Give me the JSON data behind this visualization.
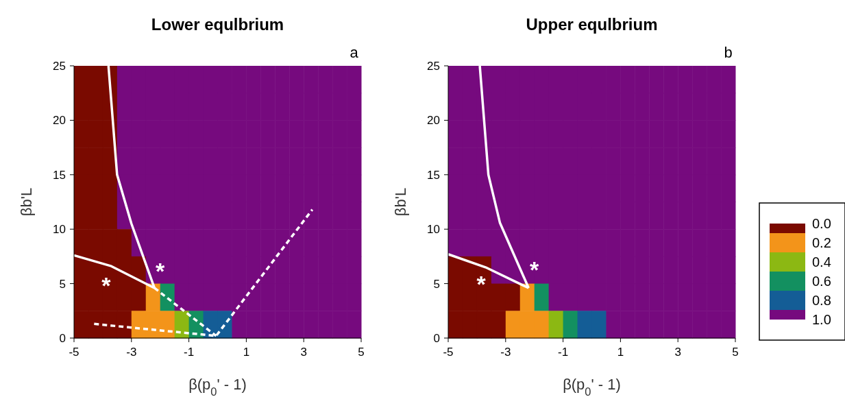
{
  "chart_data": [
    {
      "type": "scatter",
      "title": "Lower equlbrium",
      "xlabel": "β(p$_{0}$' - 1)",
      "ylabel": "βb'L",
      "annotations": [
        "a",
        "*",
        "*"
      ],
      "xlim": [
        -5,
        5
      ],
      "xticks": [
        -5,
        -3,
        -1,
        1,
        3,
        5
      ],
      "ylim": [
        0,
        25
      ],
      "yticks": [
        0,
        5,
        10,
        15,
        20,
        25
      ],
      "series": [
        {
          "marker": "square",
          "colors": [
            "#7a0a00",
            "#7a0a00",
            "#7a0a00",
            "#760a7e",
            "#760a7e",
            "#760a7e",
            "#760a7e",
            "#760a7e",
            "#760a7e",
            "#760a7e",
            "#760a7e",
            "#760a7e",
            "#760a7e",
            "#760a7e",
            "#760a7e",
            "#760a7e",
            "#760a7e",
            "#760a7e",
            "#760a7e",
            "#760a7e",
            "#7a0a00",
            "#7a0a00",
            "#7a0a00",
            "#760a7e",
            "#760a7e",
            "#760a7e",
            "#760a7e",
            "#760a7e",
            "#760a7e",
            "#760a7e",
            "#760a7e",
            "#760a7e",
            "#760a7e",
            "#760a7e",
            "#760a7e",
            "#760a7e",
            "#760a7e",
            "#760a7e",
            "#760a7e",
            "#760a7e",
            "#7a0a00",
            "#7a0a00",
            "#7a0a00",
            "#760a7e",
            "#760a7e",
            "#760a7e",
            "#760a7e",
            "#760a7e",
            "#760a7e",
            "#760a7e",
            "#760a7e",
            "#760a7e",
            "#760a7e",
            "#760a7e",
            "#760a7e",
            "#760a7e",
            "#760a7e",
            "#760a7e",
            "#760a7e",
            "#760a7e",
            "#7a0a00",
            "#7a0a00",
            "#7a0a00",
            "#760a7e",
            "#760a7e",
            "#760a7e",
            "#760a7e",
            "#760a7e",
            "#760a7e",
            "#760a7e",
            "#760a7e",
            "#760a7e",
            "#760a7e",
            "#760a7e",
            "#760a7e",
            "#760a7e",
            "#760a7e",
            "#760a7e",
            "#760a7e",
            "#760a7e",
            "#7a0a00",
            "#7a0a00",
            "#7a0a00",
            "#760a7e",
            "#760a7e",
            "#760a7e",
            "#760a7e",
            "#760a7e",
            "#760a7e",
            "#760a7e",
            "#760a7e",
            "#760a7e",
            "#760a7e",
            "#760a7e",
            "#760a7e",
            "#760a7e",
            "#760a7e",
            "#760a7e",
            "#760a7e",
            "#760a7e",
            "#7a0a00",
            "#7a0a00",
            "#7a0a00",
            "#760a7e",
            "#760a7e",
            "#760a7e",
            "#760a7e",
            "#760a7e",
            "#760a7e",
            "#760a7e",
            "#760a7e",
            "#760a7e",
            "#760a7e",
            "#760a7e",
            "#760a7e",
            "#760a7e",
            "#760a7e",
            "#760a7e",
            "#760a7e",
            "#760a7e",
            "#7a0a00",
            "#7a0a00",
            "#7a0a00",
            "#7a0a00",
            "#760a7e",
            "#760a7e",
            "#760a7e",
            "#760a7e",
            "#760a7e",
            "#760a7e",
            "#760a7e",
            "#760a7e",
            "#760a7e",
            "#760a7e",
            "#760a7e",
            "#760a7e",
            "#760a7e",
            "#760a7e",
            "#760a7e",
            "#760a7e",
            "#7a0a00",
            "#7a0a00",
            "#7a0a00",
            "#7a0a00",
            "#7a0a00",
            "#760a7e",
            "#760a7e",
            "#760a7e",
            "#760a7e",
            "#760a7e",
            "#760a7e",
            "#760a7e",
            "#760a7e",
            "#760a7e",
            "#760a7e",
            "#760a7e",
            "#760a7e",
            "#760a7e",
            "#760a7e",
            "#760a7e",
            "#7a0a00",
            "#7a0a00",
            "#7a0a00",
            "#7a0a00",
            "#7a0a00",
            "#f3941a",
            "#139060",
            "#760a7e",
            "#760a7e",
            "#760a7e",
            "#760a7e",
            "#760a7e",
            "#760a7e",
            "#760a7e",
            "#760a7e",
            "#760a7e",
            "#760a7e",
            "#760a7e",
            "#760a7e",
            "#760a7e",
            "#7a0a00",
            "#7a0a00",
            "#7a0a00",
            "#7a0a00",
            "#f3941a",
            "#f3941a",
            "#f3941a",
            "#8cb813",
            "#139060",
            "#145d96",
            "#145d96",
            "#760a7e",
            "#760a7e",
            "#760a7e",
            "#760a7e",
            "#760a7e",
            "#760a7e",
            "#760a7e",
            "#760a7e",
            "#760a7e"
          ],
          "x": [
            -4.75,
            -4.25,
            -3.75,
            -3.25,
            -2.75,
            -2.25,
            -1.75,
            -1.25,
            -0.75,
            -0.25,
            0.25,
            0.75,
            1.25,
            1.75,
            2.25,
            2.75,
            3.25,
            3.75,
            4.25,
            4.75,
            -4.75,
            -4.25,
            -3.75,
            -3.25,
            -2.75,
            -2.25,
            -1.75,
            -1.25,
            -0.75,
            -0.25,
            0.25,
            0.75,
            1.25,
            1.75,
            2.25,
            2.75,
            3.25,
            3.75,
            4.25,
            4.75,
            -4.75,
            -4.25,
            -3.75,
            -3.25,
            -2.75,
            -2.25,
            -1.75,
            -1.25,
            -0.75,
            -0.25,
            0.25,
            0.75,
            1.25,
            1.75,
            2.25,
            2.75,
            3.25,
            3.75,
            4.25,
            4.75,
            -4.75,
            -4.25,
            -3.75,
            -3.25,
            -2.75,
            -2.25,
            -1.75,
            -1.25,
            -0.75,
            -0.25,
            0.25,
            0.75,
            1.25,
            1.75,
            2.25,
            2.75,
            3.25,
            3.75,
            4.25,
            4.75,
            -4.75,
            -4.25,
            -3.75,
            -3.25,
            -2.75,
            -2.25,
            -1.75,
            -1.25,
            -0.75,
            -0.25,
            0.25,
            0.75,
            1.25,
            1.75,
            2.25,
            2.75,
            3.25,
            3.75,
            4.25,
            4.75,
            -4.75,
            -4.25,
            -3.75,
            -3.25,
            -2.75,
            -2.25,
            -1.75,
            -1.25,
            -0.75,
            -0.25,
            0.25,
            0.75,
            1.25,
            1.75,
            2.25,
            2.75,
            3.25,
            3.75,
            4.25,
            4.75,
            -4.75,
            -4.25,
            -3.75,
            -3.25,
            -2.75,
            -2.25,
            -1.75,
            -1.25,
            -0.75,
            -0.25,
            0.25,
            0.75,
            1.25,
            1.75,
            2.25,
            2.75,
            3.25,
            3.75,
            4.25,
            4.75,
            -4.75,
            -4.25,
            -3.75,
            -3.25,
            -2.75,
            -2.25,
            -1.75,
            -1.25,
            -0.75,
            -0.25,
            0.25,
            0.75,
            1.25,
            1.75,
            2.25,
            2.75,
            3.25,
            3.75,
            4.25,
            4.75,
            -4.75,
            -4.25,
            -3.75,
            -3.25,
            -2.75,
            -2.25,
            -1.75,
            -1.25,
            -0.75,
            -0.25,
            0.25,
            0.75,
            1.25,
            1.75,
            2.25,
            2.75,
            3.25,
            3.75,
            4.25,
            4.75,
            -4.75,
            -4.25,
            -3.75,
            -3.25,
            -2.75,
            -2.25,
            -1.75,
            -1.25,
            -0.75,
            -0.25,
            0.25,
            0.75,
            1.25,
            1.75,
            2.25,
            2.75,
            3.25,
            3.75,
            4.25,
            4.75
          ],
          "values": [
            23.75,
            23.75,
            23.75,
            23.75,
            23.75,
            23.75,
            23.75,
            23.75,
            23.75,
            23.75,
            23.75,
            23.75,
            23.75,
            23.75,
            23.75,
            23.75,
            23.75,
            23.75,
            23.75,
            23.75,
            21.25,
            21.25,
            21.25,
            21.25,
            21.25,
            21.25,
            21.25,
            21.25,
            21.25,
            21.25,
            21.25,
            21.25,
            21.25,
            21.25,
            21.25,
            21.25,
            21.25,
            21.25,
            21.25,
            21.25,
            18.75,
            18.75,
            18.75,
            18.75,
            18.75,
            18.75,
            18.75,
            18.75,
            18.75,
            18.75,
            18.75,
            18.75,
            18.75,
            18.75,
            18.75,
            18.75,
            18.75,
            18.75,
            18.75,
            18.75,
            16.25,
            16.25,
            16.25,
            16.25,
            16.25,
            16.25,
            16.25,
            16.25,
            16.25,
            16.25,
            16.25,
            16.25,
            16.25,
            16.25,
            16.25,
            16.25,
            16.25,
            16.25,
            16.25,
            16.25,
            13.75,
            13.75,
            13.75,
            13.75,
            13.75,
            13.75,
            13.75,
            13.75,
            13.75,
            13.75,
            13.75,
            13.75,
            13.75,
            13.75,
            13.75,
            13.75,
            13.75,
            13.75,
            13.75,
            13.75,
            11.25,
            11.25,
            11.25,
            11.25,
            11.25,
            11.25,
            11.25,
            11.25,
            11.25,
            11.25,
            11.25,
            11.25,
            11.25,
            11.25,
            11.25,
            11.25,
            11.25,
            11.25,
            11.25,
            11.25,
            8.75,
            8.75,
            8.75,
            8.75,
            8.75,
            8.75,
            8.75,
            8.75,
            8.75,
            8.75,
            8.75,
            8.75,
            8.75,
            8.75,
            8.75,
            8.75,
            8.75,
            8.75,
            8.75,
            8.75,
            6.25,
            6.25,
            6.25,
            6.25,
            6.25,
            6.25,
            6.25,
            6.25,
            6.25,
            6.25,
            6.25,
            6.25,
            6.25,
            6.25,
            6.25,
            6.25,
            6.25,
            6.25,
            6.25,
            6.25,
            3.75,
            3.75,
            3.75,
            3.75,
            3.75,
            3.75,
            3.75,
            3.75,
            3.75,
            3.75,
            3.75,
            3.75,
            3.75,
            3.75,
            3.75,
            3.75,
            3.75,
            3.75,
            3.75,
            3.75,
            1.25,
            1.25,
            1.25,
            1.25,
            1.25,
            1.25,
            1.25,
            1.25,
            1.25,
            1.25,
            1.25,
            1.25,
            1.25,
            1.25,
            1.25,
            1.25,
            1.25,
            1.25,
            1.25,
            1.25
          ]
        },
        {
          "type": "line",
          "color": "#ffffff",
          "line_style": "solid",
          "x": [
            -3.8,
            -3.5,
            -3,
            -2.2
          ],
          "values": [
            25,
            15,
            10.5,
            4.6
          ]
        },
        {
          "type": "line",
          "color": "#ffffff",
          "line_style": "solid",
          "x": [
            -5,
            -3.7,
            -2.2
          ],
          "values": [
            7.6,
            6.6,
            4.6
          ]
        },
        {
          "type": "line",
          "color": "#ffffff",
          "line_style": "dashed",
          "x": [
            -4.3,
            -0.05,
            3.3
          ],
          "values": [
            1.3,
            0.2,
            11.8
          ]
        },
        {
          "type": "line",
          "color": "#ffffff",
          "line_style": "dashed",
          "x": [
            -2.2,
            -0.05
          ],
          "values": [
            4.6,
            0.2
          ]
        }
      ]
    },
    {
      "type": "scatter",
      "title": "Upper equlbrium",
      "xlabel": "β(p$_{0}$' - 1)",
      "ylabel": "βb'L",
      "annotations": [
        "b",
        "*",
        "*"
      ],
      "xlim": [
        -5,
        5
      ],
      "xticks": [
        -5,
        -3,
        -1,
        1,
        3,
        5
      ],
      "ylim": [
        0,
        25
      ],
      "yticks": [
        0,
        5,
        10,
        15,
        20,
        25
      ],
      "clim": [
        0,
        1
      ],
      "cticks": [
        {
          "value": 0,
          "label": "0.0"
        },
        {
          "value": 0.2,
          "label": "0.2"
        },
        {
          "value": 0.4,
          "label": "0.4"
        },
        {
          "value": 0.6,
          "label": "0.6"
        },
        {
          "value": 0.8,
          "label": "0.8"
        },
        {
          "value": 1,
          "label": "1.0"
        }
      ],
      "colors": [
        "#7a0a00",
        "#f3941a",
        "#8cb813",
        "#139060",
        "#145d96",
        "#760a7e"
      ],
      "series": [
        {
          "marker": "square",
          "colors": [
            "#760a7e",
            "#760a7e",
            "#760a7e",
            "#760a7e",
            "#760a7e",
            "#760a7e",
            "#760a7e",
            "#760a7e",
            "#760a7e",
            "#760a7e",
            "#760a7e",
            "#760a7e",
            "#760a7e",
            "#760a7e",
            "#760a7e",
            "#760a7e",
            "#760a7e",
            "#760a7e",
            "#760a7e",
            "#760a7e",
            "#760a7e",
            "#760a7e",
            "#760a7e",
            "#760a7e",
            "#760a7e",
            "#760a7e",
            "#760a7e",
            "#760a7e",
            "#760a7e",
            "#760a7e",
            "#760a7e",
            "#760a7e",
            "#760a7e",
            "#760a7e",
            "#760a7e",
            "#760a7e",
            "#760a7e",
            "#760a7e",
            "#760a7e",
            "#760a7e",
            "#760a7e",
            "#760a7e",
            "#760a7e",
            "#760a7e",
            "#760a7e",
            "#760a7e",
            "#760a7e",
            "#760a7e",
            "#760a7e",
            "#760a7e",
            "#760a7e",
            "#760a7e",
            "#760a7e",
            "#760a7e",
            "#760a7e",
            "#760a7e",
            "#760a7e",
            "#760a7e",
            "#760a7e",
            "#760a7e",
            "#760a7e",
            "#760a7e",
            "#760a7e",
            "#760a7e",
            "#760a7e",
            "#760a7e",
            "#760a7e",
            "#760a7e",
            "#760a7e",
            "#760a7e",
            "#760a7e",
            "#760a7e",
            "#760a7e",
            "#760a7e",
            "#760a7e",
            "#760a7e",
            "#760a7e",
            "#760a7e",
            "#760a7e",
            "#760a7e",
            "#760a7e",
            "#760a7e",
            "#760a7e",
            "#760a7e",
            "#760a7e",
            "#760a7e",
            "#760a7e",
            "#760a7e",
            "#760a7e",
            "#760a7e",
            "#760a7e",
            "#760a7e",
            "#760a7e",
            "#760a7e",
            "#760a7e",
            "#760a7e",
            "#760a7e",
            "#760a7e",
            "#760a7e",
            "#760a7e",
            "#760a7e",
            "#760a7e",
            "#760a7e",
            "#760a7e",
            "#760a7e",
            "#760a7e",
            "#760a7e",
            "#760a7e",
            "#760a7e",
            "#760a7e",
            "#760a7e",
            "#760a7e",
            "#760a7e",
            "#760a7e",
            "#760a7e",
            "#760a7e",
            "#760a7e",
            "#760a7e",
            "#760a7e",
            "#760a7e",
            "#760a7e",
            "#760a7e",
            "#760a7e",
            "#760a7e",
            "#760a7e",
            "#760a7e",
            "#760a7e",
            "#760a7e",
            "#760a7e",
            "#760a7e",
            "#760a7e",
            "#760a7e",
            "#760a7e",
            "#760a7e",
            "#760a7e",
            "#760a7e",
            "#760a7e",
            "#760a7e",
            "#760a7e",
            "#760a7e",
            "#7a0a00",
            "#7a0a00",
            "#7a0a00",
            "#760a7e",
            "#760a7e",
            "#760a7e",
            "#760a7e",
            "#760a7e",
            "#760a7e",
            "#760a7e",
            "#760a7e",
            "#760a7e",
            "#760a7e",
            "#760a7e",
            "#760a7e",
            "#760a7e",
            "#760a7e",
            "#760a7e",
            "#760a7e",
            "#760a7e",
            "#7a0a00",
            "#7a0a00",
            "#7a0a00",
            "#7a0a00",
            "#7a0a00",
            "#f3941a",
            "#139060",
            "#760a7e",
            "#760a7e",
            "#760a7e",
            "#760a7e",
            "#760a7e",
            "#760a7e",
            "#760a7e",
            "#760a7e",
            "#760a7e",
            "#760a7e",
            "#760a7e",
            "#760a7e",
            "#760a7e",
            "#7a0a00",
            "#7a0a00",
            "#7a0a00",
            "#7a0a00",
            "#f3941a",
            "#f3941a",
            "#f3941a",
            "#8cb813",
            "#139060",
            "#145d96",
            "#145d96",
            "#760a7e",
            "#760a7e",
            "#760a7e",
            "#760a7e",
            "#760a7e",
            "#760a7e",
            "#760a7e",
            "#760a7e",
            "#760a7e"
          ],
          "x": [
            -4.75,
            -4.25,
            -3.75,
            -3.25,
            -2.75,
            -2.25,
            -1.75,
            -1.25,
            -0.75,
            -0.25,
            0.25,
            0.75,
            1.25,
            1.75,
            2.25,
            2.75,
            3.25,
            3.75,
            4.25,
            4.75,
            -4.75,
            -4.25,
            -3.75,
            -3.25,
            -2.75,
            -2.25,
            -1.75,
            -1.25,
            -0.75,
            -0.25,
            0.25,
            0.75,
            1.25,
            1.75,
            2.25,
            2.75,
            3.25,
            3.75,
            4.25,
            4.75,
            -4.75,
            -4.25,
            -3.75,
            -3.25,
            -2.75,
            -2.25,
            -1.75,
            -1.25,
            -0.75,
            -0.25,
            0.25,
            0.75,
            1.25,
            1.75,
            2.25,
            2.75,
            3.25,
            3.75,
            4.25,
            4.75,
            -4.75,
            -4.25,
            -3.75,
            -3.25,
            -2.75,
            -2.25,
            -1.75,
            -1.25,
            -0.75,
            -0.25,
            0.25,
            0.75,
            1.25,
            1.75,
            2.25,
            2.75,
            3.25,
            3.75,
            4.25,
            4.75,
            -4.75,
            -4.25,
            -3.75,
            -3.25,
            -2.75,
            -2.25,
            -1.75,
            -1.25,
            -0.75,
            -0.25,
            0.25,
            0.75,
            1.25,
            1.75,
            2.25,
            2.75,
            3.25,
            3.75,
            4.25,
            4.75,
            -4.75,
            -4.25,
            -3.75,
            -3.25,
            -2.75,
            -2.25,
            -1.75,
            -1.25,
            -0.75,
            -0.25,
            0.25,
            0.75,
            1.25,
            1.75,
            2.25,
            2.75,
            3.25,
            3.75,
            4.25,
            4.75,
            -4.75,
            -4.25,
            -3.75,
            -3.25,
            -2.75,
            -2.25,
            -1.75,
            -1.25,
            -0.75,
            -0.25,
            0.25,
            0.75,
            1.25,
            1.75,
            2.25,
            2.75,
            3.25,
            3.75,
            4.25,
            4.75,
            -4.75,
            -4.25,
            -3.75,
            -3.25,
            -2.75,
            -2.25,
            -1.75,
            -1.25,
            -0.75,
            -0.25,
            0.25,
            0.75,
            1.25,
            1.75,
            2.25,
            2.75,
            3.25,
            3.75,
            4.25,
            4.75,
            -4.75,
            -4.25,
            -3.75,
            -3.25,
            -2.75,
            -2.25,
            -1.75,
            -1.25,
            -0.75,
            -0.25,
            0.25,
            0.75,
            1.25,
            1.75,
            2.25,
            2.75,
            3.25,
            3.75,
            4.25,
            4.75,
            -4.75,
            -4.25,
            -3.75,
            -3.25,
            -2.75,
            -2.25,
            -1.75,
            -1.25,
            -0.75,
            -0.25,
            0.25,
            0.75,
            1.25,
            1.75,
            2.25,
            2.75,
            3.25,
            3.75,
            4.25,
            4.75
          ],
          "values": [
            23.75,
            23.75,
            23.75,
            23.75,
            23.75,
            23.75,
            23.75,
            23.75,
            23.75,
            23.75,
            23.75,
            23.75,
            23.75,
            23.75,
            23.75,
            23.75,
            23.75,
            23.75,
            23.75,
            23.75,
            21.25,
            21.25,
            21.25,
            21.25,
            21.25,
            21.25,
            21.25,
            21.25,
            21.25,
            21.25,
            21.25,
            21.25,
            21.25,
            21.25,
            21.25,
            21.25,
            21.25,
            21.25,
            21.25,
            21.25,
            18.75,
            18.75,
            18.75,
            18.75,
            18.75,
            18.75,
            18.75,
            18.75,
            18.75,
            18.75,
            18.75,
            18.75,
            18.75,
            18.75,
            18.75,
            18.75,
            18.75,
            18.75,
            18.75,
            18.75,
            16.25,
            16.25,
            16.25,
            16.25,
            16.25,
            16.25,
            16.25,
            16.25,
            16.25,
            16.25,
            16.25,
            16.25,
            16.25,
            16.25,
            16.25,
            16.25,
            16.25,
            16.25,
            16.25,
            16.25,
            13.75,
            13.75,
            13.75,
            13.75,
            13.75,
            13.75,
            13.75,
            13.75,
            13.75,
            13.75,
            13.75,
            13.75,
            13.75,
            13.75,
            13.75,
            13.75,
            13.75,
            13.75,
            13.75,
            13.75,
            11.25,
            11.25,
            11.25,
            11.25,
            11.25,
            11.25,
            11.25,
            11.25,
            11.25,
            11.25,
            11.25,
            11.25,
            11.25,
            11.25,
            11.25,
            11.25,
            11.25,
            11.25,
            11.25,
            11.25,
            8.75,
            8.75,
            8.75,
            8.75,
            8.75,
            8.75,
            8.75,
            8.75,
            8.75,
            8.75,
            8.75,
            8.75,
            8.75,
            8.75,
            8.75,
            8.75,
            8.75,
            8.75,
            8.75,
            8.75,
            6.25,
            6.25,
            6.25,
            6.25,
            6.25,
            6.25,
            6.25,
            6.25,
            6.25,
            6.25,
            6.25,
            6.25,
            6.25,
            6.25,
            6.25,
            6.25,
            6.25,
            6.25,
            6.25,
            6.25,
            3.75,
            3.75,
            3.75,
            3.75,
            3.75,
            3.75,
            3.75,
            3.75,
            3.75,
            3.75,
            3.75,
            3.75,
            3.75,
            3.75,
            3.75,
            3.75,
            3.75,
            3.75,
            3.75,
            3.75,
            1.25,
            1.25,
            1.25,
            1.25,
            1.25,
            1.25,
            1.25,
            1.25,
            1.25,
            1.25,
            1.25,
            1.25,
            1.25,
            1.25,
            1.25,
            1.25,
            1.25,
            1.25,
            1.25,
            1.25
          ]
        },
        {
          "type": "line",
          "color": "#ffffff",
          "line_style": "solid",
          "x": [
            -3.9,
            -3.6,
            -3.2,
            -2.2
          ],
          "values": [
            25,
            15,
            10.6,
            4.6
          ]
        },
        {
          "type": "line",
          "color": "#ffffff",
          "line_style": "solid",
          "x": [
            -5,
            -3.7,
            -2.2
          ],
          "values": [
            7.7,
            6.5,
            4.6
          ]
        }
      ]
    }
  ]
}
